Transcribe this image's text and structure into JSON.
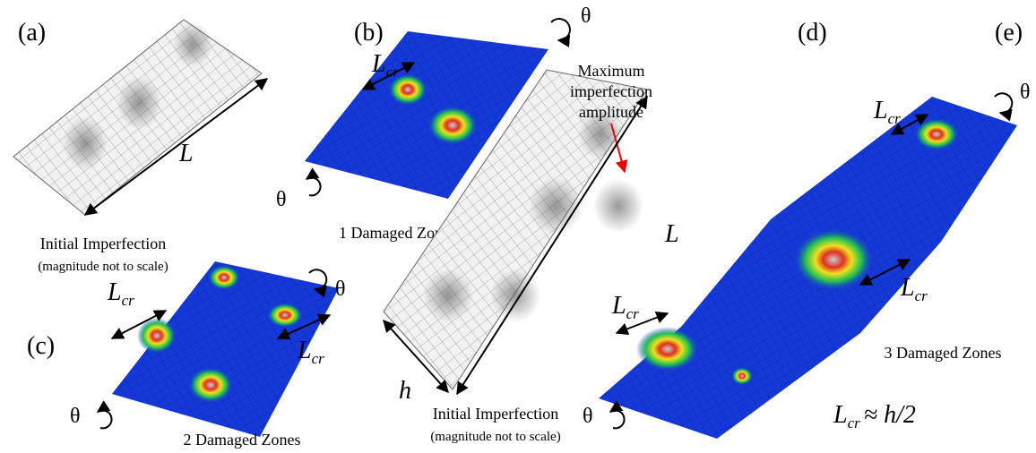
{
  "panels": {
    "a": {
      "label": "(a)",
      "length": "L",
      "caption": "Initial Imperfection",
      "note": "(magnitude not to scale)"
    },
    "b": {
      "label": "(b)",
      "theta": [
        "θ",
        "θ"
      ],
      "lcr": [
        {
          "main": "L",
          "sub": "cr"
        }
      ],
      "caption": "1 Damaged Zone"
    },
    "c": {
      "label": "(c)",
      "theta": [
        "θ",
        "θ"
      ],
      "lcr": [
        {
          "main": "L",
          "sub": "cr"
        },
        {
          "main": "L",
          "sub": "cr"
        }
      ],
      "caption": "2 Damaged Zones"
    },
    "d": {
      "label": "(d)",
      "annotation": [
        "Maximum",
        "imperfection",
        "amplitude"
      ],
      "length": "L",
      "width": "h",
      "caption": "Initial Imperfection",
      "note": "(magnitude not to scale)"
    },
    "e": {
      "label": "(e)",
      "theta": [
        "θ",
        "θ"
      ],
      "lcr": [
        {
          "main": "L",
          "sub": "cr"
        },
        {
          "main": "L",
          "sub": "cr"
        },
        {
          "main": "L",
          "sub": "cr"
        }
      ],
      "caption": "3 Damaged Zones",
      "relation": {
        "main": "L",
        "sub": "cr",
        "rest": "≈ h/2"
      }
    }
  }
}
